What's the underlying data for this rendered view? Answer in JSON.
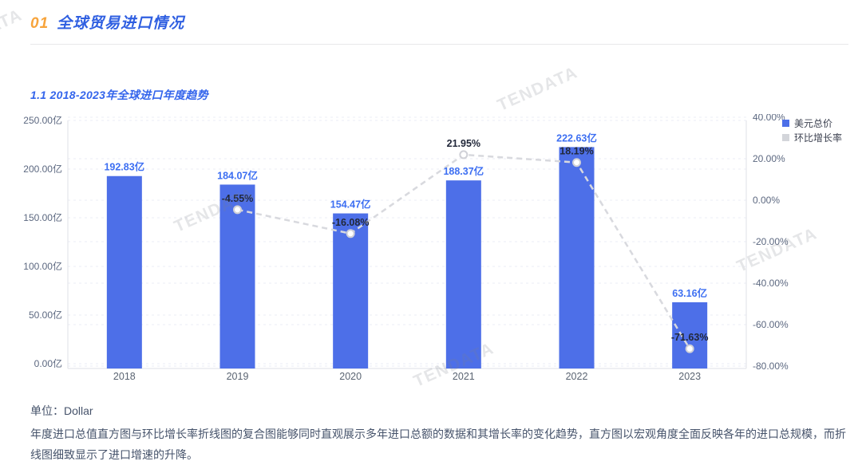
{
  "header": {
    "number": "01",
    "title": "全球贸易进口情况"
  },
  "section": {
    "subtitle": "1.1 2018-2023年全球进口年度趋势"
  },
  "watermark": "TENDATA",
  "footer": {
    "unit_label": "单位：Dollar",
    "description": "年度进口总值直方图与环比增长率折线图的复合图能够同时直观展示多年进口总额的数据和其增长率的变化趋势，直方图以宏观角度全面反映各年的进口总规模，而折线图细致显示了进口增速的升降。"
  },
  "colors": {
    "accent_orange": "#f7a43c",
    "accent_blue": "#2f5fe1",
    "bar": "#4d6fe8",
    "bar_label": "#3d6ff2",
    "line": "#d8d9de",
    "marker_stroke": "#d0d1d7",
    "pct_label": "#22283a",
    "axis_text": "#5c6880",
    "x_label_text": "#5a6472",
    "grid": "#ebecf4",
    "axis_line": "#dfe0e7",
    "legend_gray": "#d3d5da"
  },
  "chart_data": {
    "type": "bar+line combo",
    "categories": [
      "2018",
      "2019",
      "2020",
      "2021",
      "2022",
      "2023"
    ],
    "series": [
      {
        "name": "美元总价",
        "type": "bar",
        "color": "#4d6fe8",
        "values": [
          192.83,
          184.07,
          154.47,
          188.37,
          222.63,
          63.16
        ],
        "labels": [
          "192.83亿",
          "184.07亿",
          "154.47亿",
          "188.37亿",
          "222.63亿",
          "63.16亿"
        ]
      },
      {
        "name": "环比增长率",
        "type": "line",
        "color": "#d8d9de",
        "values": [
          null,
          -4.55,
          -16.08,
          21.95,
          18.19,
          -71.63
        ],
        "labels": [
          null,
          "-4.55%",
          "-16.08%",
          "21.95%",
          "18.19%",
          "-71.63%"
        ]
      }
    ],
    "left_axis": {
      "min": 0,
      "max": 250,
      "tick_values": [
        0,
        50,
        100,
        150,
        200,
        250
      ],
      "tick_labels": [
        "0.00亿",
        "50.00亿",
        "100.00亿",
        "150.00亿",
        "200.00亿",
        "250.00亿"
      ]
    },
    "right_axis": {
      "min": -80,
      "max": 40,
      "tick_values": [
        -80,
        -60,
        -40,
        -20,
        0,
        20,
        40
      ],
      "tick_labels": [
        "-80.00%",
        "-60.00%",
        "-40.00%",
        "-20.00%",
        "0.00%",
        "20.00%",
        "40.00%"
      ]
    },
    "legend_position": "top-right",
    "grid": "dashed"
  }
}
